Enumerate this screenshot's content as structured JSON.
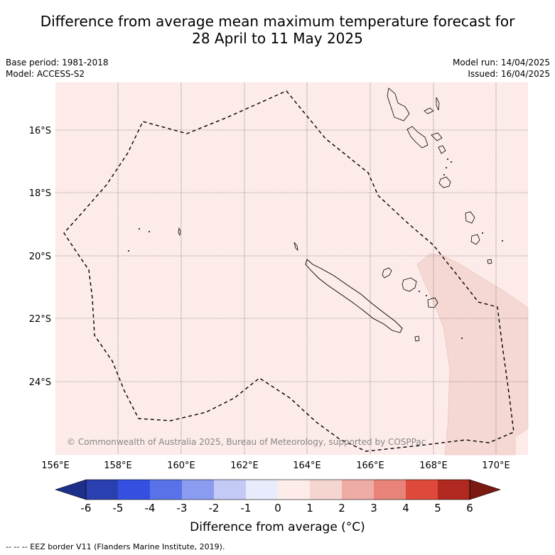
{
  "title_line1": "Difference from average mean maximum temperature forecast for",
  "title_line2": "28 April to 11 May 2025",
  "base_period": "Base period: 1981-2018",
  "model": "Model: ACCESS-S2",
  "model_run": "Model run: 14/04/2025",
  "issued": "Issued: 16/04/2025",
  "copyright": "© Commonwealth of Australia 2025, Bureau of Meteorology, supported by COSPPac",
  "lat_labels": [
    "16°S",
    "18°S",
    "20°S",
    "22°S",
    "24°S"
  ],
  "lon_labels": [
    "156°E",
    "158°E",
    "160°E",
    "162°E",
    "164°E",
    "166°E",
    "168°E",
    "170°E"
  ],
  "colorbar": {
    "ticks": [
      "-6",
      "-5",
      "-4",
      "-3",
      "-2",
      "-1",
      "0",
      "1",
      "2",
      "3",
      "4",
      "5",
      "6"
    ],
    "colors": [
      "#1e2f8a",
      "#2a3fb0",
      "#3550e0",
      "#5a72e8",
      "#8a9cf0",
      "#c3caf5",
      "#e8ebfb",
      "#fdecea",
      "#f5d5d0",
      "#efaca6",
      "#e8837a",
      "#dd4a3c",
      "#b02820",
      "#7a1a12"
    ],
    "label": "Difference from average (°C)"
  },
  "legend_footnote": "-- -- -- EEZ border V11 (Flanders Marine Institute, 2019).",
  "map_colors": {
    "background": "#fcebe8",
    "warm_region": "#f5d8d3",
    "grid": "#555555"
  }
}
